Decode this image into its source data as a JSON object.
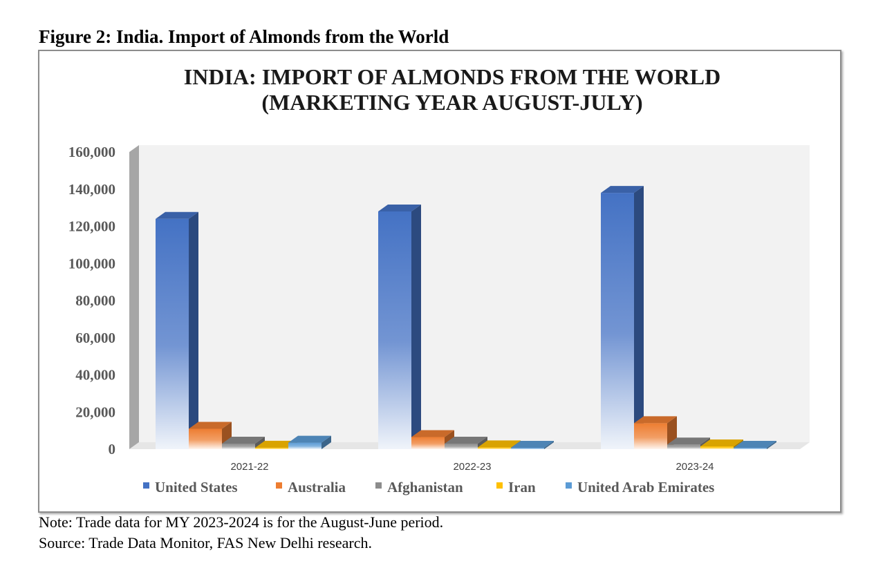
{
  "figure_caption": "Figure 2: India. Import of Almonds from the World",
  "note": "Note: Trade data for MY 2023-2024 is for the August-June period.",
  "source": "Source: Trade Data Monitor, FAS New Delhi research.",
  "chart_data": {
    "type": "bar",
    "title_lines": [
      "INDIA: IMPORT OF ALMONDS FROM THE WORLD",
      "(MARKETING YEAR AUGUST-JULY)"
    ],
    "categories": [
      "2021-22",
      "2022-23",
      "2023-24"
    ],
    "ylim": [
      0,
      160000
    ],
    "yticks": [
      0,
      20000,
      40000,
      60000,
      80000,
      100000,
      120000,
      140000,
      160000
    ],
    "ytick_labels": [
      "0",
      "20,000",
      "40,000",
      "60,000",
      "80,000",
      "100,000",
      "120,000",
      "140,000",
      "160,000"
    ],
    "grid": false,
    "legend_position": "bottom",
    "series": [
      {
        "name": "United States",
        "color": "#4472c4",
        "values": [
          124000,
          128000,
          138000
        ]
      },
      {
        "name": "Australia",
        "color": "#ed7d31",
        "values": [
          11000,
          6500,
          14000
        ]
      },
      {
        "name": "Afghanistan",
        "color": "#8c8c8c",
        "values": [
          3000,
          3000,
          2500
        ]
      },
      {
        "name": "Iran",
        "color": "#ffc000",
        "values": [
          800,
          1000,
          1500
        ]
      },
      {
        "name": "United Arab Emirates",
        "color": "#5b9bd5",
        "values": [
          3500,
          500,
          500
        ]
      }
    ]
  }
}
